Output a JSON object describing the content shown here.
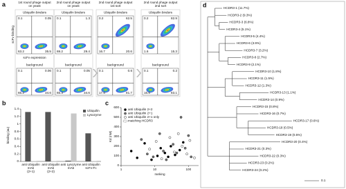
{
  "flow_panel": {
    "label": "a",
    "y_axis_label": "scFv binding",
    "x_axis_label": "scFv expression",
    "columns": [
      {
        "title_lines": [
          "1st round phage  output",
          "on yeast"
        ],
        "top_label": "Ubiquilin binders",
        "bottom_label": "background",
        "top_quadrants": [
          0.1,
          0.05,
          63.2,
          35.5
        ],
        "bottom_quadrants": [
          0.1,
          0.06,
          65.2,
          34.6
        ]
      },
      {
        "title_lines": [
          "2nd round phage  output",
          "on yeast"
        ],
        "top_label": "Ubiquilin binders",
        "bottom_label": "background",
        "top_quadrants": [
          0.1,
          1.3,
          69.2,
          29.4
        ],
        "bottom_quadrants": [
          0.1,
          0.05,
          65.3,
          34.6
        ]
      },
      {
        "title_lines": [
          "2nd round phage  output",
          "1st sort"
        ],
        "top_label": "Ubiquilin binders",
        "bottom_label": "background",
        "top_quadrants": [
          0.2,
          62.5,
          16.7,
          20.6
        ],
        "bottom_quadrants": [
          0.1,
          0.6,
          17.6,
          81.7
        ]
      },
      {
        "title_lines": [
          "2nd round phage  output",
          "2nd sort"
        ],
        "top_label": "Ubiquilin binders",
        "bottom_label": "background",
        "top_quadrants": [
          0.2,
          82.9,
          1.6,
          15.3
        ],
        "bottom_quadrants": [
          0.1,
          0.2,
          16.6,
          83.1
        ]
      }
    ]
  },
  "chart_data": [
    {
      "label": "b",
      "type": "bar",
      "y_axis_label": "binding (au)",
      "categories": [
        [
          "anti Ubiquilin",
          "mAb",
          "(2+1)"
        ],
        [
          "anti Ubiquilin",
          "mAb",
          "(2+2)"
        ],
        [
          "anti Lysozyme",
          "mAb"
        ],
        [
          "anti Ubiquilin",
          "scFv-Fc"
        ]
      ],
      "series": [
        {
          "name": "Ubiquilin",
          "color": "#555555",
          "values": [
            1.32,
            1.32,
            0.02,
            0.75
          ]
        },
        {
          "name": "Lysozyme",
          "color": "#c8c8c8",
          "values": [
            0.01,
            0.01,
            1.28,
            0.01
          ]
        }
      ],
      "ylim": [
        0,
        1.4
      ],
      "yticks": [
        0,
        0.2,
        0.4,
        0.6,
        0.8,
        1,
        1.2,
        1.4
      ],
      "legend": "upper right"
    },
    {
      "label": "c",
      "type": "scatter",
      "x_axis_label": "ranking",
      "y_axis_label": "Kd (nM)",
      "log_x": true,
      "series": [
        {
          "name": "anti Ubiquilin 2+2",
          "color": "#000000",
          "x": [
            2,
            3,
            5,
            8,
            12,
            15,
            20,
            25,
            30,
            40,
            55,
            70
          ],
          "y": [
            150,
            80,
            230,
            60,
            100,
            180,
            130,
            90,
            200,
            110,
            160,
            240
          ]
        },
        {
          "name": "anti Ubiquilin 2+1",
          "color": "#777777",
          "x": [
            4,
            6,
            9,
            14,
            18,
            22,
            35,
            45,
            60,
            80,
            100,
            120
          ],
          "y": [
            270,
            120,
            90,
            330,
            150,
            60,
            220,
            130,
            500,
            180,
            310,
            90
          ]
        },
        {
          "name": "anti Ubiquilin 2+1 only",
          "color": "#ffffff",
          "x": [
            7,
            11,
            16,
            28,
            38,
            50,
            65,
            90,
            110,
            150
          ],
          "y": [
            170,
            250,
            70,
            290,
            140,
            330,
            200,
            120,
            260,
            80
          ]
        }
      ],
      "matching_label": "matching HCDR3",
      "xlim": [
        1,
        200
      ],
      "xticks": [
        1,
        10,
        100
      ],
      "ylim": [
        0,
        600
      ],
      "yticks": [
        0,
        100,
        200,
        300,
        400,
        500,
        600
      ],
      "legend": "upper left"
    }
  ],
  "tree_panel": {
    "label": "d",
    "scale_bar": 0.1,
    "tree": {
      "children": [
        {
          "length": 0.05,
          "children": [
            {
              "name": "HCDR3-1 (11.7%)",
              "length": 0.05
            },
            {
              "name": "HCDR3-2 (9.3%)",
              "length": 0.08
            },
            {
              "length": 0.03,
              "children": [
                {
                  "name": "HCDR3-3 (6.8%)",
                  "length": 0.06
                },
                {
                  "name": "HCDR3-4 (5.1%)",
                  "length": 0.04
                }
              ]
            }
          ]
        },
        {
          "length": 0.08,
          "children": [
            {
              "length": 0.04,
              "children": [
                {
                  "name": "HCDR3-5 (4.4%)",
                  "length": 0.1,
                  "color": "#3a5fcd"
                },
                {
                  "name": "HCDR3-6 (3.9%)",
                  "length": 0.07
                },
                {
                  "name": "HCDR3-7 (3.2%)",
                  "length": 0.12
                }
              ]
            },
            {
              "length": 0.06,
              "children": [
                {
                  "name": "HCDR3-8 (2.7%)",
                  "length": 0.09
                },
                {
                  "name": "HCDR3-9 (2.1%)",
                  "length": 0.05,
                  "color": "#3a5fcd"
                }
              ]
            }
          ]
        },
        {
          "length": 0.12,
          "children": [
            {
              "length": 0.05,
              "children": [
                {
                  "name": "HCDR3-10 (1.8%)",
                  "length": 0.15
                },
                {
                  "name": "HCDR3-11 (1.5%)",
                  "length": 0.1,
                  "color": "#3a5fcd"
                },
                {
                  "name": "HCDR3-12 (1.3%)",
                  "length": 0.08
                }
              ]
            },
            {
              "length": 0.1,
              "children": [
                {
                  "name": "HCDR3-13 (1.1%)",
                  "length": 0.2
                },
                {
                  "name": "HCDR3-14 (0.9%)",
                  "length": 0.12
                }
              ]
            }
          ]
        },
        {
          "length": 0.2,
          "children": [
            {
              "name": "HCDR3-15 (0.8%)",
              "length": 0.1,
              "color": "#3a5fcd"
            },
            {
              "name": "HCDR3-16 (0.7%)",
              "length": 0.15
            },
            {
              "length": 0.08,
              "children": [
                {
                  "name": "HCDR3-17 (0.6%)",
                  "length": 0.3
                },
                {
                  "name": "HCDR3-18 (0.5%)",
                  "length": 0.12
                },
                {
                  "name": "HCDR3-19 (0.5%)",
                  "length": 0.18,
                  "color": "#3a5fcd"
                }
              ]
            }
          ]
        },
        {
          "length": 0.15,
          "children": [
            {
              "name": "HCDR3-20 (0.4%)",
              "length": 0.35
            },
            {
              "name": "HCDR3-21 (0.3%)",
              "length": 0.1
            },
            {
              "name": "HCDR3-22 (0.3%)",
              "length": 0.2
            },
            {
              "name": "HCDR3-23 (0.2%)",
              "length": 0.12,
              "color": "#3a5fcd"
            },
            {
              "name": "HCDR3-24 (0.2%)",
              "length": 0.08
            }
          ]
        }
      ]
    }
  }
}
